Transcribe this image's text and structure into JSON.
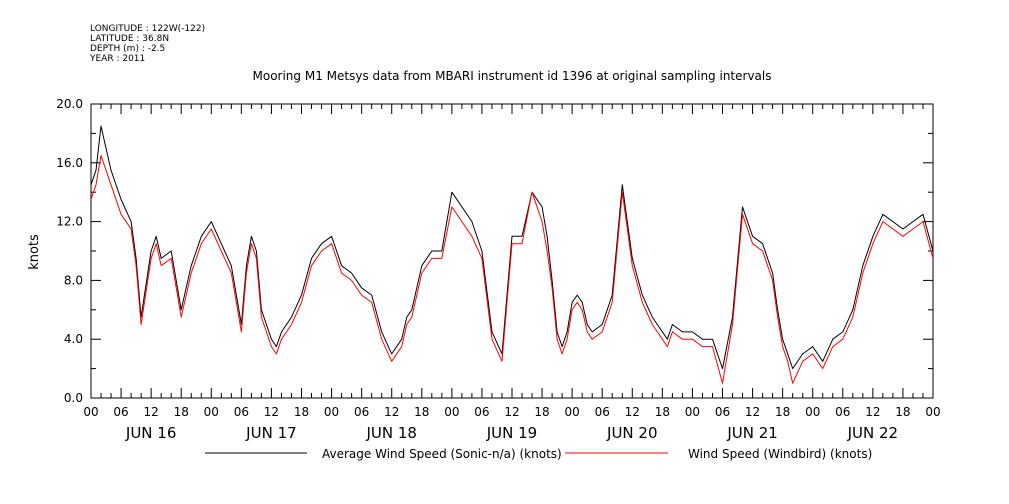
{
  "header": {
    "meta_lines": [
      "LONGITUDE : 122W(-122)",
      "LATITUDE : 36.8N",
      "DEPTH (m) : -2.5",
      "YEAR : 2011"
    ],
    "title": "Mooring M1 Metsys data from MBARI instrument id 1396 at original sampling intervals"
  },
  "chart_data": {
    "type": "line",
    "title": "Mooring M1 Metsys data from MBARI instrument id 1396 at original sampling intervals",
    "ylabel": "knots",
    "xlabel": "",
    "ylim": [
      0,
      20
    ],
    "xlim_hours": [
      0,
      168
    ],
    "y_ticks": [
      "0.0",
      "4.0",
      "8.0",
      "12.0",
      "16.0",
      "20.0"
    ],
    "x_hour_labels": [
      "00",
      "06",
      "12",
      "18",
      "00",
      "06",
      "12",
      "18",
      "00",
      "06",
      "12",
      "18",
      "00",
      "06",
      "12",
      "18",
      "00",
      "06",
      "12",
      "18",
      "00",
      "06",
      "12",
      "18",
      "00",
      "06",
      "12",
      "18",
      "00"
    ],
    "day_labels": [
      "JUN 16",
      "JUN 17",
      "JUN 18",
      "JUN 19",
      "JUN 20",
      "JUN 21",
      "JUN 22"
    ],
    "grid": false,
    "legend_position": "bottom",
    "series": [
      {
        "name": "Average Wind Speed (Sonic-n/a) (knots)",
        "color": "#000000",
        "x": [
          0,
          1,
          2,
          4,
          6,
          8,
          9,
          10,
          12,
          13,
          14,
          16,
          18,
          20,
          21,
          22,
          24,
          28,
          30,
          31,
          32,
          33,
          34,
          35,
          36,
          37,
          38,
          40,
          42,
          44,
          46,
          48,
          50,
          52,
          54,
          56,
          58,
          60,
          62,
          63,
          64,
          66,
          68,
          70,
          72,
          74,
          76,
          78,
          80,
          82,
          84,
          86,
          88,
          90,
          91,
          92,
          93,
          94,
          95,
          96,
          97,
          98,
          99,
          100,
          102,
          104,
          106,
          108,
          110,
          112,
          113,
          114,
          115,
          116,
          118,
          120,
          122,
          124,
          126,
          128,
          130,
          132,
          134,
          136,
          137,
          138,
          139,
          140,
          142,
          144,
          146,
          148,
          150,
          152,
          154,
          156,
          158,
          160,
          162,
          164,
          166,
          168
        ],
        "y": [
          14.5,
          15.5,
          18.5,
          15.5,
          13.5,
          12.0,
          9.5,
          5.5,
          10.0,
          11.0,
          9.5,
          10.0,
          6.0,
          9.0,
          10.0,
          11.0,
          12.0,
          9.0,
          5.0,
          9.0,
          11.0,
          10.0,
          6.0,
          5.0,
          4.0,
          3.5,
          4.5,
          5.5,
          7.0,
          9.5,
          10.5,
          11.0,
          9.0,
          8.5,
          7.5,
          7.0,
          4.5,
          3.0,
          4.0,
          5.5,
          6.0,
          9.0,
          10.0,
          10.0,
          14.0,
          13.0,
          12.0,
          10.0,
          4.5,
          3.0,
          11.0,
          11.0,
          14.0,
          13.0,
          11.0,
          8.0,
          4.5,
          3.5,
          4.5,
          6.5,
          7.0,
          6.5,
          5.0,
          4.5,
          5.0,
          7.0,
          14.5,
          9.5,
          7.0,
          5.5,
          5.0,
          4.5,
          4.0,
          5.0,
          4.5,
          4.5,
          4.0,
          4.0,
          2.0,
          5.5,
          13.0,
          11.0,
          10.5,
          8.5,
          6.0,
          4.0,
          3.0,
          2.0,
          3.0,
          3.5,
          2.5,
          4.0,
          4.5,
          6.0,
          9.0,
          11.0,
          12.5,
          12.0,
          11.5,
          12.0,
          12.5,
          10.0
        ]
      },
      {
        "name": "Wind Speed (Windbird) (knots)",
        "color": "#ff0000",
        "x": [
          0,
          1,
          2,
          4,
          6,
          8,
          9,
          10,
          12,
          13,
          14,
          16,
          18,
          20,
          21,
          22,
          24,
          28,
          30,
          31,
          32,
          33,
          34,
          35,
          36,
          37,
          38,
          40,
          42,
          44,
          46,
          48,
          50,
          52,
          54,
          56,
          58,
          60,
          62,
          63,
          64,
          66,
          68,
          70,
          72,
          74,
          76,
          78,
          80,
          82,
          84,
          86,
          88,
          90,
          91,
          92,
          93,
          94,
          95,
          96,
          97,
          98,
          99,
          100,
          102,
          104,
          106,
          108,
          110,
          112,
          113,
          114,
          115,
          116,
          118,
          120,
          122,
          124,
          126,
          128,
          130,
          132,
          134,
          136,
          137,
          138,
          139,
          140,
          142,
          144,
          146,
          148,
          150,
          152,
          154,
          156,
          158,
          160,
          162,
          164,
          166,
          168
        ],
        "y": [
          13.5,
          14.5,
          16.5,
          14.5,
          12.5,
          11.5,
          9.0,
          5.0,
          9.5,
          10.5,
          9.0,
          9.5,
          5.5,
          8.5,
          9.5,
          10.5,
          11.5,
          8.5,
          4.5,
          8.5,
          10.5,
          9.5,
          5.5,
          4.5,
          3.5,
          3.0,
          4.0,
          5.0,
          6.5,
          9.0,
          10.0,
          10.5,
          8.5,
          8.0,
          7.0,
          6.5,
          4.0,
          2.5,
          3.5,
          5.0,
          5.5,
          8.5,
          9.5,
          9.5,
          13.0,
          12.0,
          11.0,
          9.5,
          4.0,
          2.5,
          10.5,
          10.5,
          14.0,
          12.0,
          10.0,
          7.5,
          4.0,
          3.0,
          4.0,
          6.0,
          6.5,
          6.0,
          4.5,
          4.0,
          4.5,
          6.5,
          14.0,
          9.0,
          6.5,
          5.0,
          4.5,
          4.0,
          3.5,
          4.5,
          4.0,
          4.0,
          3.5,
          3.5,
          1.0,
          5.0,
          12.5,
          10.5,
          10.0,
          8.0,
          5.5,
          3.5,
          2.5,
          1.0,
          2.5,
          3.0,
          2.0,
          3.5,
          4.0,
          5.5,
          8.5,
          10.5,
          12.0,
          11.5,
          11.0,
          11.5,
          12.0,
          9.5
        ]
      }
    ]
  }
}
